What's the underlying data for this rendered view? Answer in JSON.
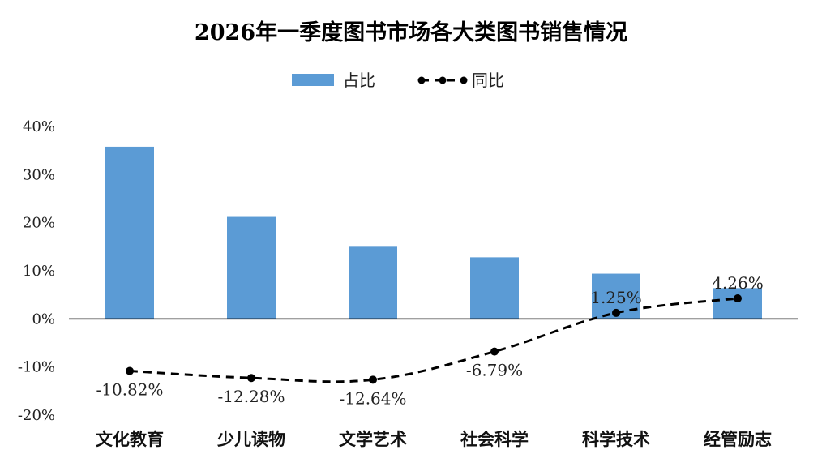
{
  "chart_data": {
    "type": "bar",
    "title": "2026年一季度图书市场各大类图书销售情况",
    "categories": [
      "文化教育",
      "少儿读物",
      "文学艺术",
      "社会科学",
      "科学技术",
      "经管励志"
    ],
    "series": [
      {
        "name": "占比",
        "type": "bar",
        "color": "#5B9BD5",
        "values": [
          35.8,
          21.2,
          15.0,
          12.8,
          9.4,
          6.4
        ]
      },
      {
        "name": "同比",
        "type": "line",
        "style": "dashed",
        "color": "#000000",
        "values": [
          -10.82,
          -12.28,
          -12.64,
          -6.79,
          1.25,
          4.26
        ],
        "labels": [
          "-10.82%",
          "-12.28%",
          "-12.64%",
          "-6.79%",
          "1.25%",
          "4.26%"
        ]
      }
    ],
    "yticks": [
      "40%",
      "30%",
      "20%",
      "10%",
      "0%",
      "-10%",
      "-20%"
    ],
    "ylim": [
      -20,
      40
    ],
    "legend_position": "top",
    "grid": false
  }
}
